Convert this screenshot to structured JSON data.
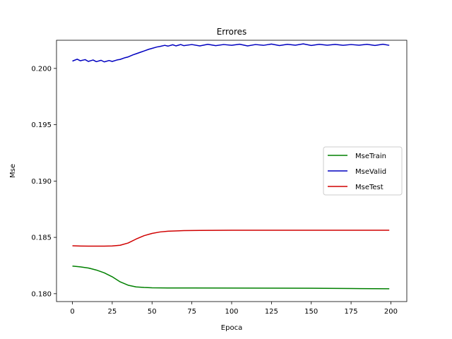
{
  "chart_data": {
    "type": "line",
    "title": "Errores",
    "xlabel": "Epoca",
    "ylabel": "Mse",
    "xlim": [
      -10,
      210
    ],
    "ylim": [
      0.1793,
      0.2025
    ],
    "xticks": [
      0,
      25,
      50,
      75,
      100,
      125,
      150,
      175,
      200
    ],
    "yticks": [
      0.18,
      0.185,
      0.19,
      0.195,
      0.2
    ],
    "ytick_labels": [
      "0.180",
      "0.185",
      "0.190",
      "0.195",
      "0.200"
    ],
    "grid": false,
    "legend_position": "center-right",
    "series": [
      {
        "name": "MseTrain",
        "color": "#008000",
        "x": [
          0,
          5,
          10,
          15,
          20,
          25,
          30,
          35,
          40,
          45,
          50,
          60,
          75,
          100,
          125,
          150,
          175,
          199
        ],
        "y": [
          0.18245,
          0.18238,
          0.18228,
          0.1821,
          0.18185,
          0.1815,
          0.18105,
          0.18075,
          0.1806,
          0.18055,
          0.18052,
          0.18051,
          0.18051,
          0.1805,
          0.18049,
          0.18048,
          0.18046,
          0.18044
        ]
      },
      {
        "name": "MseValid",
        "color": "#0000c0",
        "x": [
          0,
          3,
          5,
          8,
          10,
          13,
          15,
          18,
          20,
          23,
          25,
          28,
          30,
          33,
          35,
          38,
          40,
          43,
          45,
          48,
          50,
          53,
          55,
          58,
          60,
          63,
          65,
          68,
          70,
          75,
          80,
          85,
          90,
          95,
          100,
          105,
          110,
          115,
          120,
          125,
          130,
          135,
          140,
          145,
          150,
          155,
          160,
          165,
          170,
          175,
          180,
          185,
          190,
          195,
          199
        ],
        "y": [
          0.20065,
          0.20082,
          0.20068,
          0.20078,
          0.20062,
          0.20075,
          0.2006,
          0.20072,
          0.20058,
          0.2007,
          0.20062,
          0.20075,
          0.2008,
          0.20095,
          0.20102,
          0.2012,
          0.2013,
          0.20145,
          0.20155,
          0.2017,
          0.20178,
          0.2019,
          0.20195,
          0.20205,
          0.20198,
          0.2021,
          0.202,
          0.20212,
          0.20202,
          0.20212,
          0.202,
          0.20214,
          0.20202,
          0.20212,
          0.20205,
          0.20215,
          0.202,
          0.20212,
          0.20205,
          0.20216,
          0.20203,
          0.20214,
          0.20206,
          0.20218,
          0.20204,
          0.20214,
          0.20206,
          0.20213,
          0.20205,
          0.20212,
          0.20206,
          0.20214,
          0.20204,
          0.20215,
          0.20205
        ]
      },
      {
        "name": "MseTest",
        "color": "#d00000",
        "x": [
          0,
          5,
          10,
          15,
          20,
          25,
          30,
          35,
          40,
          45,
          50,
          55,
          60,
          70,
          80,
          100,
          125,
          150,
          175,
          199
        ],
        "y": [
          0.18425,
          0.18423,
          0.18422,
          0.18422,
          0.18422,
          0.18424,
          0.1843,
          0.1845,
          0.18485,
          0.18515,
          0.18535,
          0.18548,
          0.18555,
          0.1856,
          0.18562,
          0.18563,
          0.18563,
          0.18563,
          0.18563,
          0.18563
        ]
      }
    ]
  }
}
